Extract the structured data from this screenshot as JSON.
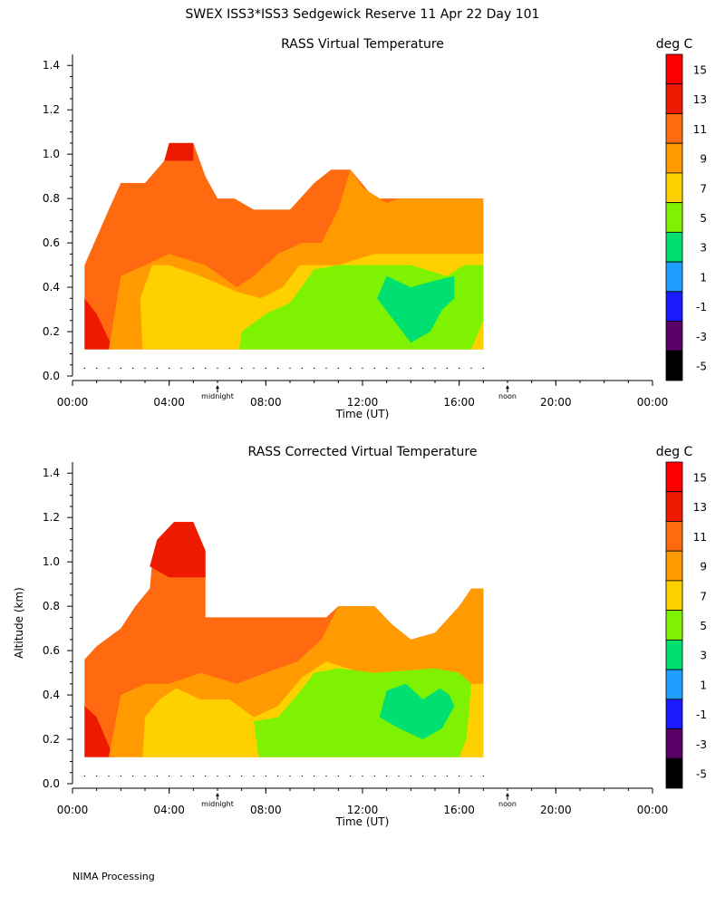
{
  "page": {
    "title": "SWEX ISS3*ISS3 Sedgewick Reserve  11 Apr 22 Day 101",
    "footer": "NIMA Processing"
  },
  "colors": [
    "#000000",
    "#5a0066",
    "#1a1aff",
    "#1e9eff",
    "#00e070",
    "#7ef200",
    "#ffd000",
    "#ff9a00",
    "#ff6a10",
    "#ee1a00",
    "#ff0000"
  ],
  "chart_data": [
    {
      "type": "heatmap",
      "title": "RASS Virtual Temperature",
      "xlabel": "Time (UT)",
      "ylabel": "",
      "units": "deg C",
      "xlim": [
        0,
        24
      ],
      "ylim": [
        0,
        1.45
      ],
      "xticks": [
        "00:00",
        "04:00",
        "08:00",
        "12:00",
        "16:00",
        "20:00",
        "00:00"
      ],
      "yticks": [
        "0.0",
        "0.2",
        "0.4",
        "0.6",
        "0.8",
        "1.0",
        "1.2",
        "1.4"
      ],
      "markers": [
        {
          "label": "midnight",
          "x": 6.0
        },
        {
          "label": "noon",
          "x": 18.0
        }
      ],
      "colorbar_levels": [
        15,
        13,
        11,
        9,
        7,
        5,
        3,
        1,
        -1,
        -3,
        -5
      ],
      "dots_altitude": 0.035,
      "dots_range": [
        0.5,
        17.0
      ],
      "regions": [
        {
          "level": 11,
          "points": [
            [
              0.5,
              0.12
            ],
            [
              0.5,
              0.5
            ],
            [
              1.5,
              0.75
            ],
            [
              2.0,
              0.87
            ],
            [
              3.0,
              0.87
            ],
            [
              3.8,
              0.97
            ],
            [
              4.0,
              1.05
            ],
            [
              5.0,
              1.05
            ],
            [
              5.5,
              0.9
            ],
            [
              6.0,
              0.8
            ],
            [
              6.7,
              0.8
            ],
            [
              7.5,
              0.75
            ],
            [
              9.0,
              0.75
            ],
            [
              10.0,
              0.87
            ],
            [
              10.7,
              0.93
            ],
            [
              11.5,
              0.93
            ],
            [
              12.5,
              0.8
            ],
            [
              17.0,
              0.8
            ],
            [
              17.0,
              0.12
            ]
          ]
        },
        {
          "level": 13,
          "points": [
            [
              3.8,
              0.97
            ],
            [
              4.0,
              1.05
            ],
            [
              5.0,
              1.05
            ],
            [
              5.0,
              0.97
            ]
          ]
        },
        {
          "level": 13,
          "points": [
            [
              0.5,
              0.12
            ],
            [
              0.5,
              0.35
            ],
            [
              1.0,
              0.28
            ],
            [
              1.7,
              0.12
            ]
          ]
        },
        {
          "level": 9,
          "points": [
            [
              1.5,
              0.12
            ],
            [
              2.0,
              0.45
            ],
            [
              3.0,
              0.5
            ],
            [
              4.0,
              0.55
            ],
            [
              5.5,
              0.5
            ],
            [
              6.8,
              0.4
            ],
            [
              7.5,
              0.45
            ],
            [
              8.5,
              0.55
            ],
            [
              9.5,
              0.6
            ],
            [
              10.3,
              0.6
            ],
            [
              11.0,
              0.75
            ],
            [
              11.5,
              0.93
            ],
            [
              12.0,
              0.85
            ],
            [
              13.0,
              0.78
            ],
            [
              13.5,
              0.8
            ],
            [
              15.0,
              0.8
            ],
            [
              17.0,
              0.8
            ],
            [
              17.0,
              0.12
            ]
          ]
        },
        {
          "level": 7,
          "points": [
            [
              2.9,
              0.12
            ],
            [
              2.8,
              0.35
            ],
            [
              3.3,
              0.5
            ],
            [
              4.0,
              0.5
            ],
            [
              5.3,
              0.45
            ],
            [
              6.8,
              0.38
            ],
            [
              7.8,
              0.35
            ],
            [
              8.7,
              0.4
            ],
            [
              9.4,
              0.5
            ],
            [
              10.0,
              0.5
            ],
            [
              11.0,
              0.5
            ],
            [
              12.5,
              0.55
            ],
            [
              17.0,
              0.55
            ],
            [
              17.0,
              0.12
            ]
          ]
        },
        {
          "level": 5,
          "points": [
            [
              6.9,
              0.12
            ],
            [
              7.0,
              0.2
            ],
            [
              8.0,
              0.28
            ],
            [
              9.0,
              0.33
            ],
            [
              10.0,
              0.48
            ],
            [
              11.0,
              0.5
            ],
            [
              12.0,
              0.5
            ],
            [
              14.0,
              0.5
            ],
            [
              15.5,
              0.45
            ],
            [
              16.2,
              0.5
            ],
            [
              17.0,
              0.5
            ],
            [
              17.0,
              0.25
            ],
            [
              16.5,
              0.12
            ]
          ]
        },
        {
          "level": 3,
          "points": [
            [
              12.6,
              0.35
            ],
            [
              13.0,
              0.45
            ],
            [
              14.0,
              0.4
            ],
            [
              15.0,
              0.43
            ],
            [
              15.8,
              0.45
            ],
            [
              15.8,
              0.35
            ],
            [
              15.3,
              0.3
            ],
            [
              14.8,
              0.2
            ],
            [
              14.0,
              0.15
            ],
            [
              13.3,
              0.25
            ]
          ]
        }
      ]
    },
    {
      "type": "heatmap",
      "title": "RASS Corrected Virtual Temperature",
      "xlabel": "Time (UT)",
      "ylabel": "Altitude (km)",
      "units": "deg C",
      "xlim": [
        0,
        24
      ],
      "ylim": [
        0,
        1.45
      ],
      "xticks": [
        "00:00",
        "04:00",
        "08:00",
        "12:00",
        "16:00",
        "20:00",
        "00:00"
      ],
      "yticks": [
        "0.0",
        "0.2",
        "0.4",
        "0.6",
        "0.8",
        "1.0",
        "1.2",
        "1.4"
      ],
      "markers": [
        {
          "label": "midnight",
          "x": 6.0
        },
        {
          "label": "noon",
          "x": 18.0
        }
      ],
      "colorbar_levels": [
        15,
        13,
        11,
        9,
        7,
        5,
        3,
        1,
        -1,
        -3,
        -5
      ],
      "dots_altitude": 0.035,
      "dots_range": [
        0.5,
        17.0
      ],
      "regions": [
        {
          "level": 11,
          "points": [
            [
              0.5,
              0.12
            ],
            [
              0.5,
              0.56
            ],
            [
              1.0,
              0.62
            ],
            [
              2.0,
              0.7
            ],
            [
              2.6,
              0.8
            ],
            [
              3.2,
              0.88
            ],
            [
              3.3,
              1.0
            ],
            [
              4.0,
              1.1
            ],
            [
              4.2,
              1.18
            ],
            [
              5.0,
              1.18
            ],
            [
              5.5,
              1.05
            ],
            [
              5.5,
              0.75
            ],
            [
              7.0,
              0.75
            ],
            [
              8.0,
              0.75
            ],
            [
              9.0,
              0.75
            ],
            [
              10.5,
              0.75
            ],
            [
              11.0,
              0.8
            ],
            [
              12.5,
              0.8
            ],
            [
              13.2,
              0.72
            ],
            [
              14.0,
              0.65
            ],
            [
              15.0,
              0.68
            ],
            [
              16.0,
              0.8
            ],
            [
              16.5,
              0.88
            ],
            [
              17.0,
              0.88
            ],
            [
              17.0,
              0.12
            ]
          ]
        },
        {
          "level": 13,
          "points": [
            [
              3.2,
              0.98
            ],
            [
              3.5,
              1.1
            ],
            [
              4.2,
              1.18
            ],
            [
              5.0,
              1.18
            ],
            [
              5.5,
              1.05
            ],
            [
              5.5,
              0.93
            ],
            [
              4.0,
              0.93
            ]
          ]
        },
        {
          "level": 13,
          "points": [
            [
              0.5,
              0.12
            ],
            [
              0.5,
              0.35
            ],
            [
              1.0,
              0.3
            ],
            [
              1.7,
              0.12
            ]
          ]
        },
        {
          "level": 9,
          "points": [
            [
              1.5,
              0.12
            ],
            [
              2.0,
              0.4
            ],
            [
              3.0,
              0.45
            ],
            [
              4.0,
              0.45
            ],
            [
              5.3,
              0.5
            ],
            [
              6.8,
              0.45
            ],
            [
              8.0,
              0.5
            ],
            [
              9.3,
              0.55
            ],
            [
              10.3,
              0.65
            ],
            [
              11.0,
              0.8
            ],
            [
              12.5,
              0.8
            ],
            [
              13.2,
              0.72
            ],
            [
              14.0,
              0.65
            ],
            [
              15.0,
              0.68
            ],
            [
              16.0,
              0.8
            ],
            [
              16.5,
              0.88
            ],
            [
              17.0,
              0.88
            ],
            [
              17.0,
              0.12
            ]
          ]
        },
        {
          "level": 7,
          "points": [
            [
              2.9,
              0.12
            ],
            [
              3.0,
              0.3
            ],
            [
              3.6,
              0.38
            ],
            [
              4.3,
              0.43
            ],
            [
              5.3,
              0.38
            ],
            [
              6.5,
              0.38
            ],
            [
              7.5,
              0.3
            ],
            [
              8.5,
              0.35
            ],
            [
              9.5,
              0.48
            ],
            [
              10.5,
              0.55
            ],
            [
              12.0,
              0.5
            ],
            [
              13.0,
              0.47
            ],
            [
              14.0,
              0.45
            ],
            [
              17.0,
              0.45
            ],
            [
              17.0,
              0.12
            ]
          ]
        },
        {
          "level": 5,
          "points": [
            [
              7.7,
              0.12
            ],
            [
              7.5,
              0.28
            ],
            [
              8.5,
              0.3
            ],
            [
              9.3,
              0.4
            ],
            [
              10.0,
              0.5
            ],
            [
              11.0,
              0.52
            ],
            [
              12.5,
              0.5
            ],
            [
              15.0,
              0.52
            ],
            [
              16.0,
              0.5
            ],
            [
              16.5,
              0.45
            ],
            [
              16.3,
              0.2
            ],
            [
              16.0,
              0.12
            ]
          ]
        },
        {
          "level": 3,
          "points": [
            [
              12.7,
              0.3
            ],
            [
              13.0,
              0.42
            ],
            [
              13.8,
              0.45
            ],
            [
              14.5,
              0.38
            ],
            [
              15.2,
              0.43
            ],
            [
              15.6,
              0.4
            ],
            [
              15.8,
              0.35
            ],
            [
              15.3,
              0.25
            ],
            [
              14.5,
              0.2
            ],
            [
              13.5,
              0.25
            ]
          ]
        }
      ]
    }
  ]
}
